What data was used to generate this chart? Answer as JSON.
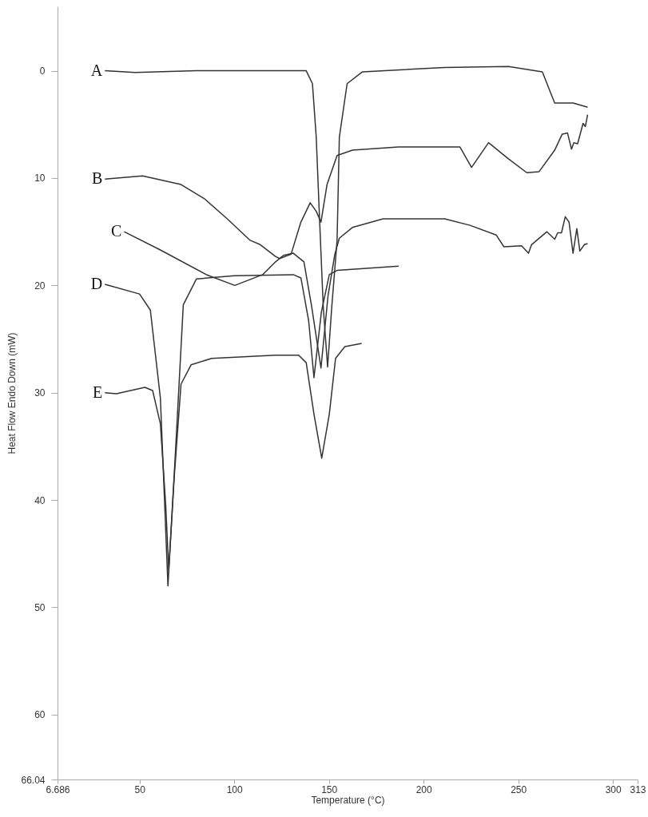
{
  "chart_data": {
    "type": "line",
    "xlabel": "Temperature (°C)",
    "ylabel": "Heat Flow Endo Down (mW)",
    "xlim": [
      6.686,
      313
    ],
    "ylim": [
      66.04,
      -6
    ],
    "xticks": [
      6.686,
      50,
      100,
      150,
      200,
      250,
      300,
      313
    ],
    "yticks": [
      0,
      10,
      20,
      30,
      40,
      50,
      60,
      66.04
    ],
    "grid": false,
    "line_style": "solid",
    "marker": "none",
    "series": [
      {
        "name": "A",
        "color": "#333333",
        "x": [
          31.7,
          47.6,
          80,
          120,
          138,
          141.3,
          143.3,
          145,
          147,
          149.3,
          151.5,
          154.3,
          155.5,
          159.6,
          167.7,
          211,
          244.8,
          262.7,
          269.2,
          279,
          286.6
        ],
        "values": [
          0,
          0.15,
          0,
          0,
          0,
          1.2,
          6.2,
          13.6,
          22,
          27.6,
          22,
          15.8,
          6.2,
          1.2,
          0.1,
          -0.3,
          -0.4,
          0.1,
          3,
          3,
          3.4
        ]
      },
      {
        "name": "B",
        "color": "#333333",
        "x": [
          31.7,
          51.6,
          71.9,
          84.1,
          96.3,
          108.4,
          113.7,
          121.8,
          123.9,
          130,
          135.2,
          140.1,
          143.3,
          145.8,
          149,
          154.3,
          162.4,
          186.8,
          211.1,
          219.2,
          225.3,
          234.3,
          244.8,
          254.5,
          261,
          269.2,
          273.2,
          276,
          278.1,
          279.3,
          281.3,
          284.2,
          285.4,
          286.6
        ],
        "values": [
          10.1,
          9.8,
          10.6,
          11.9,
          13.8,
          15.8,
          16.2,
          17.3,
          17.5,
          17.1,
          14.1,
          12.3,
          13.1,
          14.1,
          10.6,
          7.9,
          7.4,
          7.1,
          7.1,
          7.1,
          9,
          6.7,
          8.2,
          9.5,
          9.4,
          7.4,
          5.9,
          5.8,
          7.3,
          6.7,
          6.8,
          4.9,
          5.2,
          4.1
        ]
      },
      {
        "name": "C",
        "color": "#333333",
        "x": [
          41.9,
          61,
          85.3,
          100.3,
          115,
          121.8,
          126,
          131.2,
          136.8,
          140.9,
          145.8,
          149.5,
          153.1,
          155.5,
          162.4,
          178.6,
          211.1,
          224.5,
          238.3,
          242.4,
          251.7,
          255.4,
          257,
          265.1,
          269.2,
          270.8,
          272.8,
          274.8,
          276.8,
          278.9,
          280.9,
          282.5,
          284.9,
          286.6
        ],
        "values": [
          15,
          16.7,
          19,
          20,
          19,
          17.8,
          17.2,
          17,
          17.8,
          22,
          27.7,
          21,
          17.1,
          15.6,
          14.6,
          13.8,
          13.8,
          14.4,
          15.3,
          16.4,
          16.3,
          17,
          16.2,
          15,
          15.7,
          15.1,
          15.1,
          13.6,
          14.1,
          17,
          14.7,
          16.8,
          16.2,
          16.1
        ]
      },
      {
        "name": "D",
        "color": "#333333",
        "x": [
          31.7,
          50,
          55.7,
          61,
          65,
          69,
          73.1,
          80,
          100,
          131.2,
          135.2,
          139.3,
          142.1,
          146,
          150.2,
          154.3,
          186.8
        ],
        "values": [
          19.9,
          20.8,
          22.3,
          30.5,
          48,
          35.4,
          21.8,
          19.4,
          19.1,
          19,
          19.3,
          23.3,
          28.6,
          22.5,
          19,
          18.6,
          18.2
        ]
      },
      {
        "name": "E",
        "color": "#333333",
        "x": [
          31.7,
          37.8,
          52.8,
          56.9,
          61,
          63.8,
          65.4,
          68.3,
          71.9,
          77.2,
          88.1,
          121.8,
          134,
          138,
          142.1,
          146.2,
          150.2,
          153.5,
          158.4,
          167.3
        ],
        "values": [
          30,
          30.1,
          29.5,
          29.8,
          32.9,
          40.4,
          46.5,
          37.9,
          29.2,
          27.4,
          26.8,
          26.5,
          26.5,
          27.2,
          32,
          36.1,
          32,
          26.8,
          25.7,
          25.4
        ]
      }
    ]
  }
}
